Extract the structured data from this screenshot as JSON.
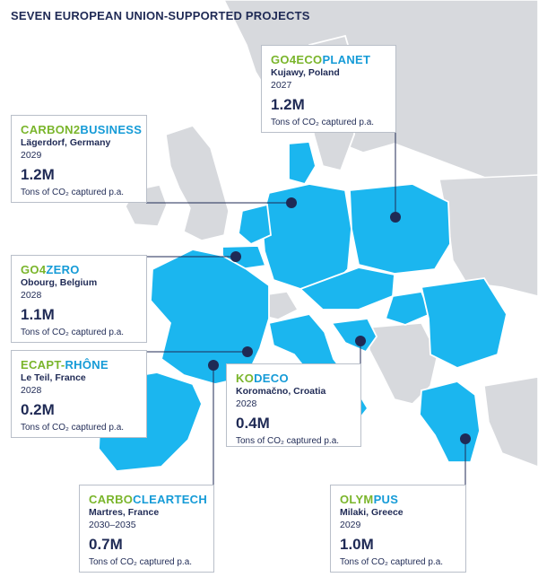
{
  "title": "SEVEN EUROPEAN UNION-SUPPORTED PROJECTS",
  "colors": {
    "ocean": "#ffffff",
    "land_other": "#d7d9dd",
    "land_eu": "#1bb6ef",
    "border": "#ffffff",
    "marker": "#1f2a55",
    "name_prefix": "#7ab52b",
    "name_suffix": "#159bd7",
    "text": "#1f2a55"
  },
  "projects": [
    {
      "id": "go4ecoplanet",
      "name_prefix": "GO4ECO",
      "name_suffix": "PLANET",
      "location": "Kujawy, Poland",
      "year": "2027",
      "value": "1.2M",
      "unit": "Tons of CO₂ captured p.a."
    },
    {
      "id": "carbon2business",
      "name_prefix": "CARBON2",
      "name_suffix": "BUSINESS",
      "location": "Lägerdorf, Germany",
      "year": "2029",
      "value": "1.2M",
      "unit": "Tons of CO₂ captured p.a."
    },
    {
      "id": "go4zero",
      "name_prefix": "GO4",
      "name_suffix": "ZERO",
      "location": "Obourg, Belgium",
      "year": "2028",
      "value": "1.1M",
      "unit": "Tons of CO₂ captured p.a."
    },
    {
      "id": "ecapt-rhone",
      "name_prefix": "ECAPT-",
      "name_suffix": "RHÔNE",
      "location": "Le Teil, France",
      "year": "2028",
      "value": "0.2M",
      "unit": "Tons of CO₂ captured p.a."
    },
    {
      "id": "kodeco",
      "name_prefix": "KO",
      "name_suffix": "DECO",
      "location": "Koromačno, Croatia",
      "year": "2028",
      "value": "0.4M",
      "unit": "Tons of CO₂ captured p.a."
    },
    {
      "id": "carbocleartech",
      "name_prefix": "CARBO",
      "name_suffix": "CLEARTECH",
      "location": "Martres, France",
      "year": "2030–2035",
      "value": "0.7M",
      "unit": "Tons of CO₂ captured p.a."
    },
    {
      "id": "olympus",
      "name_prefix": "OLYM",
      "name_suffix": "PUS",
      "location": "Milaki, Greece",
      "year": "2029",
      "value": "1.0M",
      "unit": "Tons of CO₂ captured p.a."
    }
  ]
}
